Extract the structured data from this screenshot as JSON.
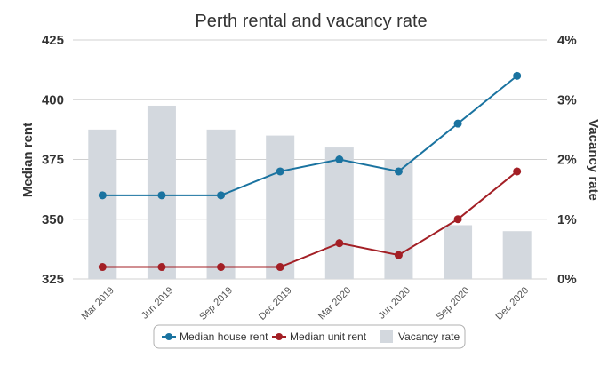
{
  "chart_data": {
    "type": "bar+line",
    "title": "Perth rental and vacancy rate",
    "categories": [
      "Mar 2019",
      "Jun 2019",
      "Sep 2019",
      "Dec 2019",
      "Mar 2020",
      "Jun 2020",
      "Sep 2020",
      "Dec 2020"
    ],
    "y_left": {
      "label": "Median rent",
      "ylim": [
        325,
        425
      ],
      "ticks": [
        "325",
        "350",
        "375",
        "400",
        "425"
      ]
    },
    "y_right": {
      "label": "Vacancy rate",
      "ylim": [
        0,
        4
      ],
      "ticks": [
        "0%",
        "1%",
        "2%",
        "3%",
        "4%"
      ]
    },
    "series": [
      {
        "name": "Median house rent",
        "type": "line",
        "axis": "left",
        "color": "#1a73a0",
        "values": [
          360,
          360,
          360,
          370,
          375,
          370,
          390,
          410
        ]
      },
      {
        "name": "Median unit rent",
        "type": "line",
        "axis": "left",
        "color": "#a31f25",
        "values": [
          330,
          330,
          330,
          330,
          340,
          335,
          350,
          370
        ]
      },
      {
        "name": "Vacancy rate",
        "type": "bar",
        "axis": "right",
        "color": "#d3d8de",
        "values": [
          2.5,
          2.9,
          2.5,
          2.4,
          2.2,
          2.0,
          0.9,
          0.8
        ]
      }
    ],
    "grid": true,
    "legend_placement": "bottom"
  }
}
